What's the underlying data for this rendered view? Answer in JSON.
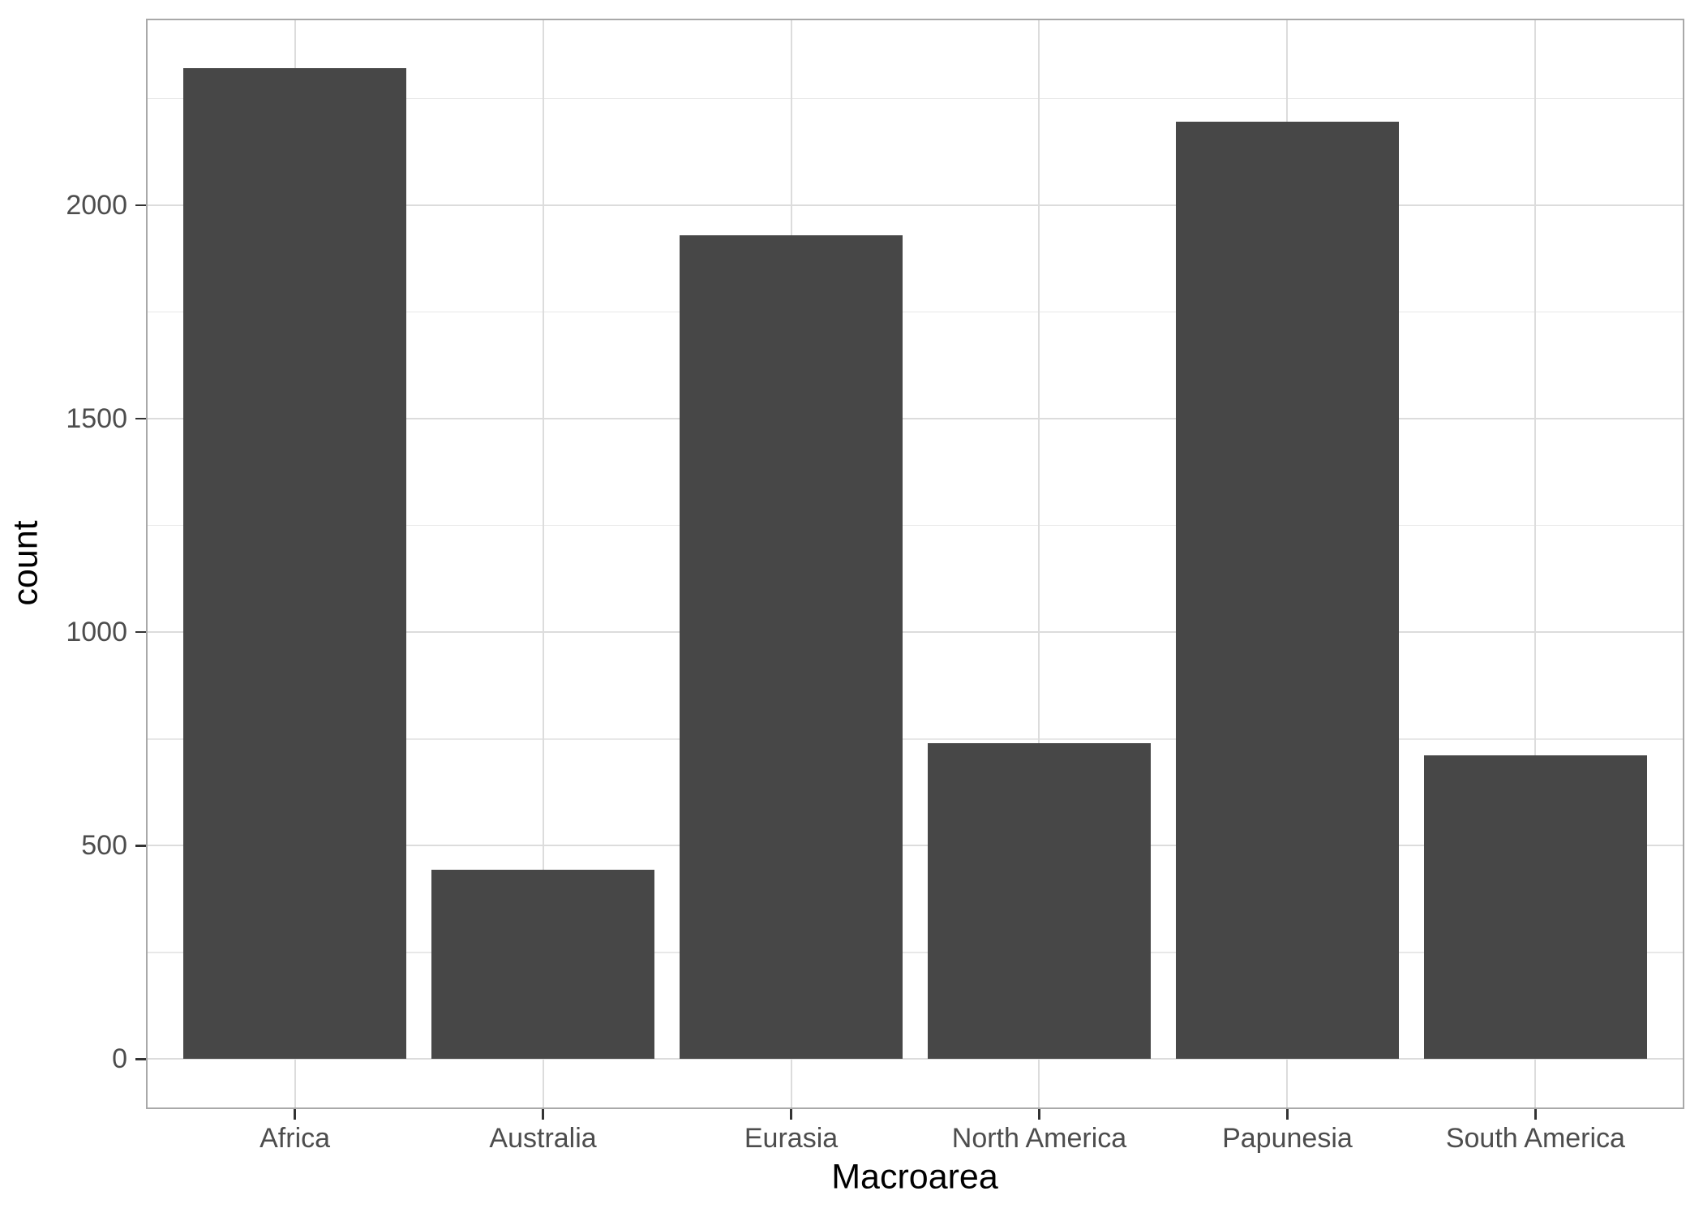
{
  "chart_data": {
    "type": "bar",
    "categories": [
      "Africa",
      "Australia",
      "Eurasia",
      "North America",
      "Papunesia",
      "South America"
    ],
    "values": [
      2322,
      443,
      1930,
      740,
      2195,
      712
    ],
    "title": "",
    "xlabel": "Macroarea",
    "ylabel": "count",
    "ylim": [
      -116,
      2437
    ],
    "yticks": [
      0,
      500,
      1000,
      1500,
      2000
    ],
    "ytick_labels": [
      "0",
      "500",
      "1000",
      "1500",
      "2000"
    ],
    "yminor": [
      250,
      750,
      1250,
      1750,
      2250
    ],
    "grid": true,
    "legend": false,
    "bar_fill": "#474747",
    "panel_border_color": "#a9a9a9",
    "grid_major_color": "#dcdcdc",
    "grid_minor_color": "#e8e8e8",
    "tick_color": "#333333",
    "tick_label_color": "#4d4d4d",
    "axis_title_color": "#000000"
  }
}
